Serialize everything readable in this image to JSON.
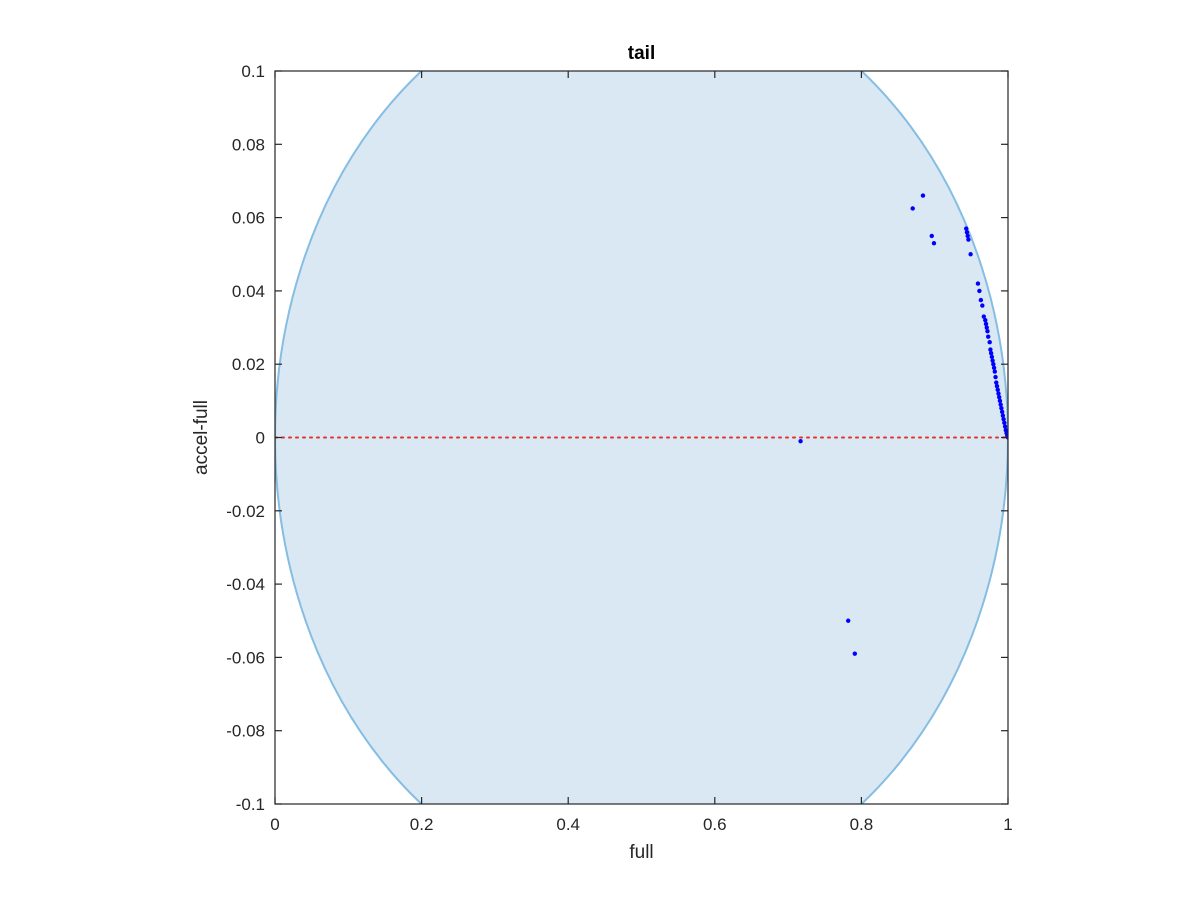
{
  "chart_data": {
    "type": "scatter",
    "title": "tail",
    "xlabel": "full",
    "ylabel": "accel-full",
    "xlim": [
      0,
      1
    ],
    "ylim": [
      -0.1,
      0.1
    ],
    "xticks": [
      0,
      0.2,
      0.4,
      0.6,
      0.8,
      1
    ],
    "xtick_labels": [
      "0",
      "0.2",
      "0.4",
      "0.6",
      "0.8",
      "1"
    ],
    "yticks": [
      -0.1,
      -0.08,
      -0.06,
      -0.04,
      -0.02,
      0,
      0.02,
      0.04,
      0.06,
      0.08,
      0.1
    ],
    "ytick_labels": [
      "-0.1",
      "-0.08",
      "-0.06",
      "-0.04",
      "-0.02",
      "0",
      "0.02",
      "0.04",
      "0.06",
      "0.08",
      "0.1"
    ],
    "grid": false,
    "reference_line": {
      "y": 0,
      "style": "dotted",
      "color": "#e8302a"
    },
    "region": {
      "shape": "ellipse",
      "center": [
        0.5,
        0
      ],
      "semi_axis_x": 0.5,
      "semi_axis_y": 0.125,
      "fill_color": "#d9e8f3",
      "edge_color": "#85bde3"
    },
    "series": [
      {
        "color": "#0000ff",
        "marker": "dot",
        "points": [
          [
            0.87,
            0.0625
          ],
          [
            0.884,
            0.066
          ],
          [
            0.896,
            0.055
          ],
          [
            0.899,
            0.053
          ],
          [
            0.943,
            0.057
          ],
          [
            0.944,
            0.056
          ],
          [
            0.945,
            0.055
          ],
          [
            0.946,
            0.054
          ],
          [
            0.949,
            0.05
          ],
          [
            0.959,
            0.042
          ],
          [
            0.961,
            0.04
          ],
          [
            0.963,
            0.0375
          ],
          [
            0.965,
            0.036
          ],
          [
            0.967,
            0.033
          ],
          [
            0.969,
            0.032
          ],
          [
            0.97,
            0.031
          ],
          [
            0.971,
            0.03
          ],
          [
            0.972,
            0.029
          ],
          [
            0.973,
            0.0275
          ],
          [
            0.975,
            0.026
          ],
          [
            0.976,
            0.024
          ],
          [
            0.977,
            0.023
          ],
          [
            0.978,
            0.022
          ],
          [
            0.979,
            0.021
          ],
          [
            0.98,
            0.02
          ],
          [
            0.981,
            0.019
          ],
          [
            0.982,
            0.018
          ],
          [
            0.983,
            0.0165
          ],
          [
            0.984,
            0.015
          ],
          [
            0.985,
            0.014
          ],
          [
            0.986,
            0.013
          ],
          [
            0.987,
            0.012
          ],
          [
            0.988,
            0.011
          ],
          [
            0.989,
            0.01
          ],
          [
            0.99,
            0.009
          ],
          [
            0.991,
            0.008
          ],
          [
            0.992,
            0.007
          ],
          [
            0.993,
            0.006
          ],
          [
            0.994,
            0.005
          ],
          [
            0.995,
            0.004
          ],
          [
            0.996,
            0.003
          ],
          [
            0.997,
            0.002
          ],
          [
            0.998,
            0.0012
          ],
          [
            0.999,
            0.0005
          ],
          [
            1.0,
            0.0002
          ],
          [
            1.0,
            0.0
          ],
          [
            0.717,
            -0.001
          ],
          [
            0.782,
            -0.05
          ],
          [
            0.791,
            -0.059
          ]
        ]
      }
    ]
  }
}
